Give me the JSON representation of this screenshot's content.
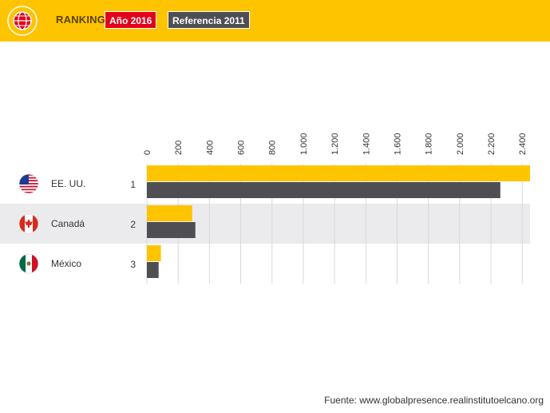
{
  "header": {
    "title": "RANKING",
    "legend_primary": "Año 2016",
    "legend_secondary": "Referencia 2011",
    "colors": {
      "background": "#ffc400",
      "primary": "#e3001b",
      "secondary": "#4f4e53"
    }
  },
  "chart_data": {
    "type": "bar",
    "orientation": "horizontal",
    "categories": [
      "EE. UU.",
      "Canadá",
      "México"
    ],
    "ranks": [
      "1",
      "2",
      "3"
    ],
    "series": [
      {
        "name": "Año 2016",
        "color": "#ffc400",
        "values": [
          2450,
          290,
          90
        ]
      },
      {
        "name": "Referencia 2011",
        "color": "#4f4e53",
        "values": [
          2260,
          310,
          75
        ]
      }
    ],
    "xlim": [
      0,
      2450
    ],
    "xticks": [
      0,
      200,
      400,
      600,
      800,
      1000,
      1200,
      1400,
      1600,
      1800,
      2000,
      2200,
      2400
    ],
    "xtick_labels": [
      "0",
      "200",
      "400",
      "600",
      "800",
      "1.000",
      "1.200",
      "1.400",
      "1.600",
      "1.800",
      "2.000",
      "2.200",
      "2.400"
    ],
    "grid": true,
    "flag_icons": [
      "usa-flag-icon",
      "canada-flag-icon",
      "mexico-flag-icon"
    ]
  },
  "source": "Fuente: www.globalpresence.realinstitutoelcano.org"
}
